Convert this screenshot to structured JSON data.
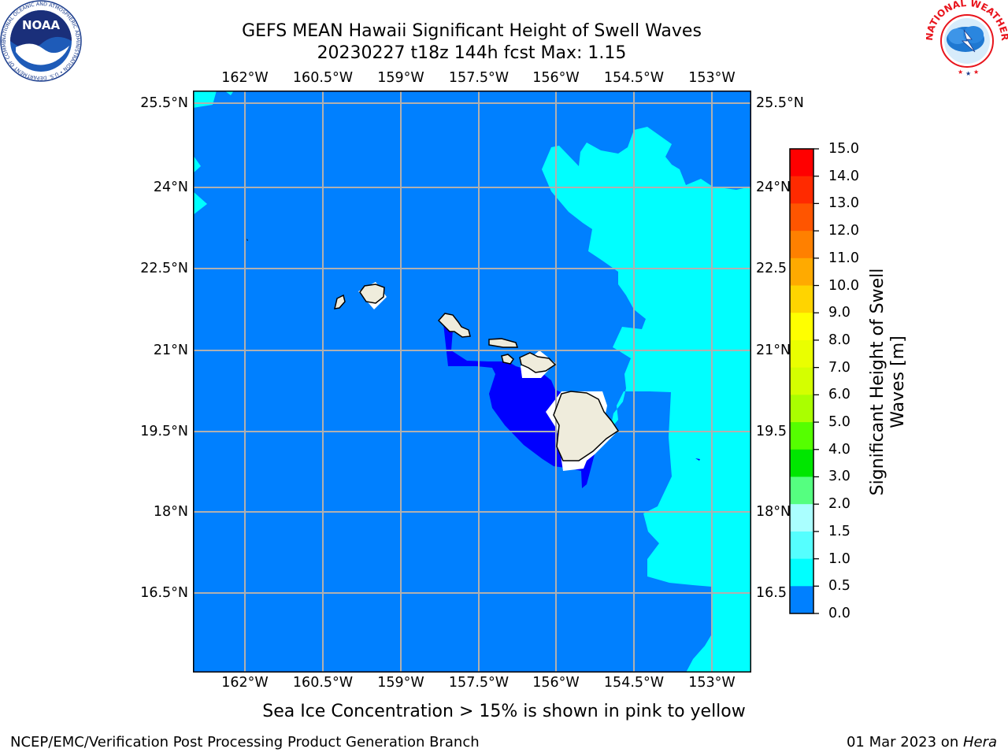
{
  "title": {
    "line1": "GEFS MEAN Hawaii Significant Height of Swell Waves",
    "line2": "20230227 t18z 144h fcst   Max: 1.15"
  },
  "map": {
    "lon_ticks": [
      "162°W",
      "160.5°W",
      "159°W",
      "157.5°W",
      "156°W",
      "154.5°W",
      "153°W"
    ],
    "lat_ticks": [
      "25.5°N",
      "24°N",
      "22.5°N",
      "21°N",
      "19.5°N",
      "18°N",
      "16.5°N"
    ],
    "lat_ticks_right": [
      "25.5°N",
      "24°N",
      "22.5",
      "21°N",
      "19.5",
      "18°N",
      "16.5"
    ],
    "colors": {
      "band_0_0_5": "#0000ff",
      "band_0_5_1_0": "#0080ff",
      "band_1_0_1_5": "#00ffff",
      "band_1_5_2_0": "#00ffe6",
      "land": "#efecdc",
      "grid": "#b0b0b0"
    }
  },
  "colorbar": {
    "label_line1": "Significant Height of Swell",
    "label_line2": "Waves [m]",
    "ticks": [
      "15.0",
      "14.0",
      "13.0",
      "12.0",
      "11.0",
      "10.0",
      "9.0",
      "8.0",
      "7.0",
      "6.0",
      "5.0",
      "4.0",
      "3.0",
      "2.0",
      "1.5",
      "1.0",
      "0.5",
      "0.0"
    ],
    "colors": [
      "#ff0000",
      "#ff2a00",
      "#ff5500",
      "#ff8000",
      "#ffaa00",
      "#ffd400",
      "#ffff00",
      "#eaff00",
      "#d4ff00",
      "#aaff00",
      "#55ff00",
      "#00e600",
      "#55ff80",
      "#aaffff",
      "#55ffff",
      "#00ffff",
      "#0080ff",
      "#0000ff"
    ]
  },
  "note": "Sea Ice Concentration > 15% is shown in pink to yellow",
  "footer": {
    "left": "NCEP/EMC/Verification Post Processing Product Generation Branch",
    "date": "01 Mar 2023 on ",
    "machine": "Hera"
  },
  "logos": {
    "noaa_text": "NOAA",
    "noaa_ring": "NATIONAL OCEANIC AND ATMOSPHERIC ADMINISTRATION • U.S. DEPARTMENT OF COMMERCE •",
    "nws_ring": "NATIONAL WEATHER SERVICE"
  }
}
